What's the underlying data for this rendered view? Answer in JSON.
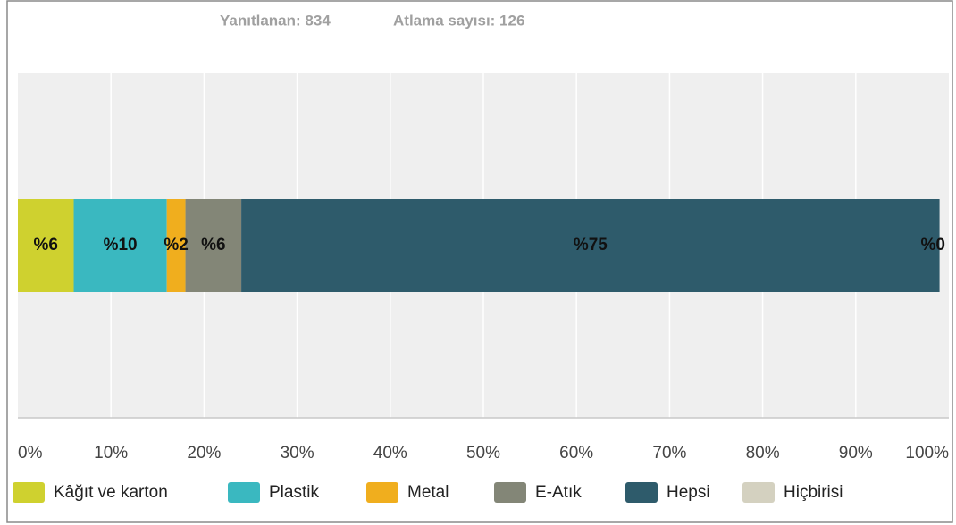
{
  "chart_data": {
    "type": "stacked-barh",
    "subtitle": [
      "Yanıtlanan: 834",
      "Atlama sayısı: 126"
    ],
    "categories": [
      null
    ],
    "series": [
      {
        "name": "Kâğıt ve karton",
        "color": "#cfd12f",
        "values": [
          6
        ],
        "value_labels": [
          "%6"
        ]
      },
      {
        "name": "Plastik",
        "color": "#3ab8c0",
        "values": [
          10
        ],
        "value_labels": [
          "%10"
        ]
      },
      {
        "name": "Metal",
        "color": "#f0ae1e",
        "values": [
          2
        ],
        "value_labels": [
          "%2"
        ]
      },
      {
        "name": "E-Atık",
        "color": "#838677",
        "values": [
          6
        ],
        "value_labels": [
          "%6"
        ]
      },
      {
        "name": "Hepsi",
        "color": "#2e5b6b",
        "values": [
          75
        ],
        "value_labels": [
          "%75"
        ]
      },
      {
        "name": "Hiçbirisi",
        "color": "#d4d1c0",
        "values": [
          0
        ],
        "value_labels": [
          "%0"
        ]
      }
    ],
    "xlim": [
      0,
      100
    ],
    "xticks": [
      {
        "value": 0,
        "label": "0%"
      },
      {
        "value": 10,
        "label": "10%"
      },
      {
        "value": 20,
        "label": "20%"
      },
      {
        "value": 30,
        "label": "30%"
      },
      {
        "value": 40,
        "label": "40%"
      },
      {
        "value": 50,
        "label": "50%"
      },
      {
        "value": 60,
        "label": "60%"
      },
      {
        "value": 70,
        "label": "70%"
      },
      {
        "value": 80,
        "label": "80%"
      },
      {
        "value": 90,
        "label": "90%"
      },
      {
        "value": 100,
        "label": "100%"
      }
    ],
    "grid": true,
    "legend": "bottom"
  }
}
